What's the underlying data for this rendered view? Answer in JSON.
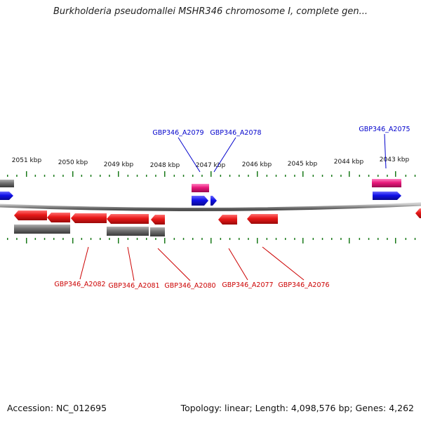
{
  "title": "Burkholderia pseudomallei MSHR346 chromosome I, complete gen...",
  "footer": {
    "accession": "Accession: NC_012695",
    "topology": "Topology: linear; Length: 4,098,576 bp; Genes: 4,262"
  },
  "scale": {
    "ticks": [
      {
        "label": "2051 kbp"
      },
      {
        "label": "2050 kbp"
      },
      {
        "label": "2049 kbp"
      },
      {
        "label": "2048 kbp"
      },
      {
        "label": "2047 kbp"
      },
      {
        "label": "2046 kbp"
      },
      {
        "label": "2045 kbp"
      },
      {
        "label": "2044 kbp"
      },
      {
        "label": "2043 kbp"
      }
    ]
  },
  "gene_labels": [
    {
      "label": "GBP346_A2079",
      "strand": "plus",
      "color": "#0000cc"
    },
    {
      "label": "GBP346_A2078",
      "strand": "plus",
      "color": "#0000cc"
    },
    {
      "label": "GBP346_A2075",
      "strand": "plus",
      "color": "#0000cc"
    },
    {
      "label": "GBP346_A2082",
      "strand": "minus",
      "color": "#cc0000"
    },
    {
      "label": "GBP346_A2081",
      "strand": "minus",
      "color": "#cc0000"
    },
    {
      "label": "GBP346_A2080",
      "strand": "minus",
      "color": "#cc0000"
    },
    {
      "label": "GBP346_A2077",
      "strand": "minus",
      "color": "#cc0000"
    },
    {
      "label": "GBP346_A2076",
      "strand": "minus",
      "color": "#cc0000"
    }
  ],
  "colors": {
    "plus_gene": "#1010e8",
    "minus_gene": "#e81818",
    "rna_feature": "#e8187a",
    "grey_feature": "#707070",
    "tick": "#1a7a1a",
    "backbone": "#888888"
  }
}
